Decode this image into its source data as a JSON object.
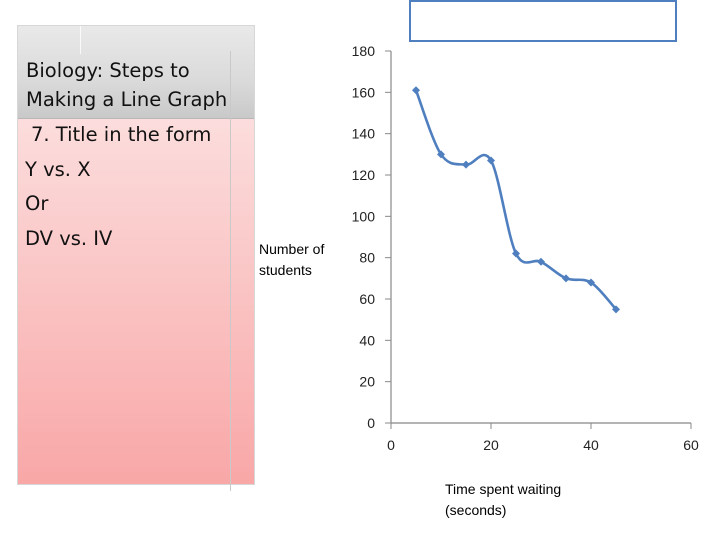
{
  "slide": {
    "title_lines": [
      "Biology: Steps to",
      "Making a Line Graph"
    ],
    "body_lines": [
      "7. Title in the form",
      "Y vs. X",
      "Or",
      "DV vs. IV"
    ]
  },
  "chart_data": {
    "type": "line",
    "title": "",
    "xlabel_lines": [
      "Time spent waiting",
      "(seconds)"
    ],
    "ylabel_lines": [
      "Number of",
      "students"
    ],
    "xlim": [
      0,
      60
    ],
    "ylim": [
      0,
      180
    ],
    "xticks": [
      0,
      20,
      40,
      60
    ],
    "yticks": [
      0,
      20,
      40,
      60,
      80,
      100,
      120,
      140,
      160,
      180
    ],
    "grid": false,
    "series_color": "#4f7fbf",
    "x": [
      5,
      10,
      15,
      20,
      25,
      30,
      35,
      40,
      45
    ],
    "y": [
      161,
      130,
      125,
      127,
      82,
      78,
      70,
      68,
      55
    ]
  }
}
